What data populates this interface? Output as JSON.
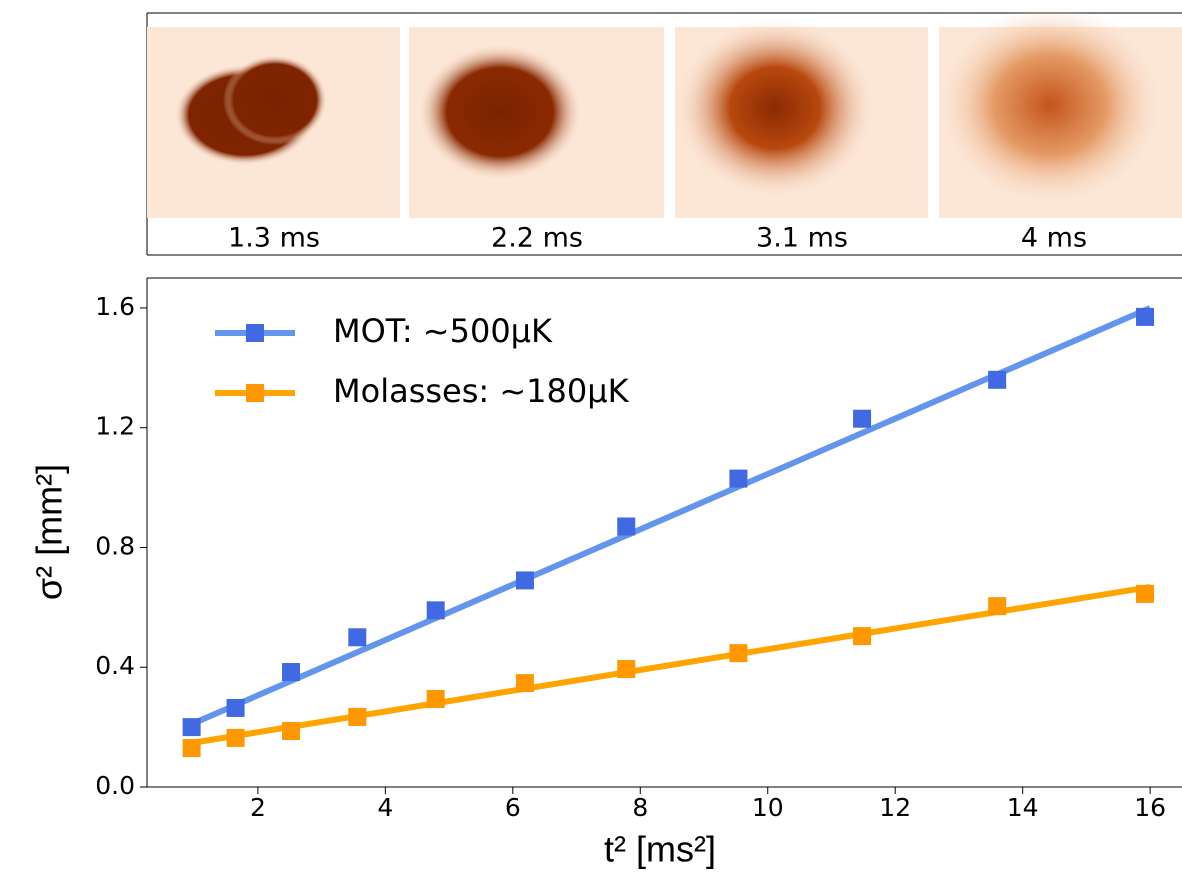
{
  "images": [
    {
      "label": "1.3 ms"
    },
    {
      "label": "2.2 ms"
    },
    {
      "label": "3.1 ms"
    },
    {
      "label": "4 ms"
    }
  ],
  "chart_data": {
    "type": "line",
    "xlabel": "t² [ms²]",
    "ylabel": "σ² [mm²]",
    "xlim": [
      0.26,
      16.5
    ],
    "ylim": [
      0,
      1.7
    ],
    "xticks": [
      2,
      4,
      6,
      8,
      10,
      12,
      14,
      16
    ],
    "yticks": [
      {
        "value": 0,
        "label": "0.0"
      },
      {
        "value": 0.4,
        "label": "0.4"
      },
      {
        "value": 0.8,
        "label": "0.8"
      },
      {
        "value": 1.2,
        "label": "1.2"
      },
      {
        "value": 1.6,
        "label": "1.6"
      }
    ],
    "legend": "upper left",
    "x": [
      0.96,
      1.65,
      2.52,
      3.56,
      4.79,
      6.19,
      7.78,
      9.54,
      11.48,
      13.6,
      15.92
    ],
    "series": [
      {
        "name": "MOT: ~500µK",
        "color": "#4169e1",
        "line_color": "#6495ed",
        "values": [
          0.2,
          0.264,
          0.384,
          0.5,
          0.59,
          0.69,
          0.87,
          1.03,
          1.23,
          1.36,
          1.57
        ],
        "fit": {
          "x": [
            0.96,
            16
          ],
          "values": [
            0.21,
            1.6
          ]
        }
      },
      {
        "name": "Molasses: ~180µK",
        "color": "#ff9800",
        "line_color": "#ffa500",
        "values": [
          0.13,
          0.164,
          0.187,
          0.234,
          0.294,
          0.347,
          0.394,
          0.447,
          0.504,
          0.604,
          0.645
        ],
        "fit": {
          "x": [
            0.96,
            16
          ],
          "values": [
            0.147,
            0.668
          ]
        }
      }
    ]
  }
}
